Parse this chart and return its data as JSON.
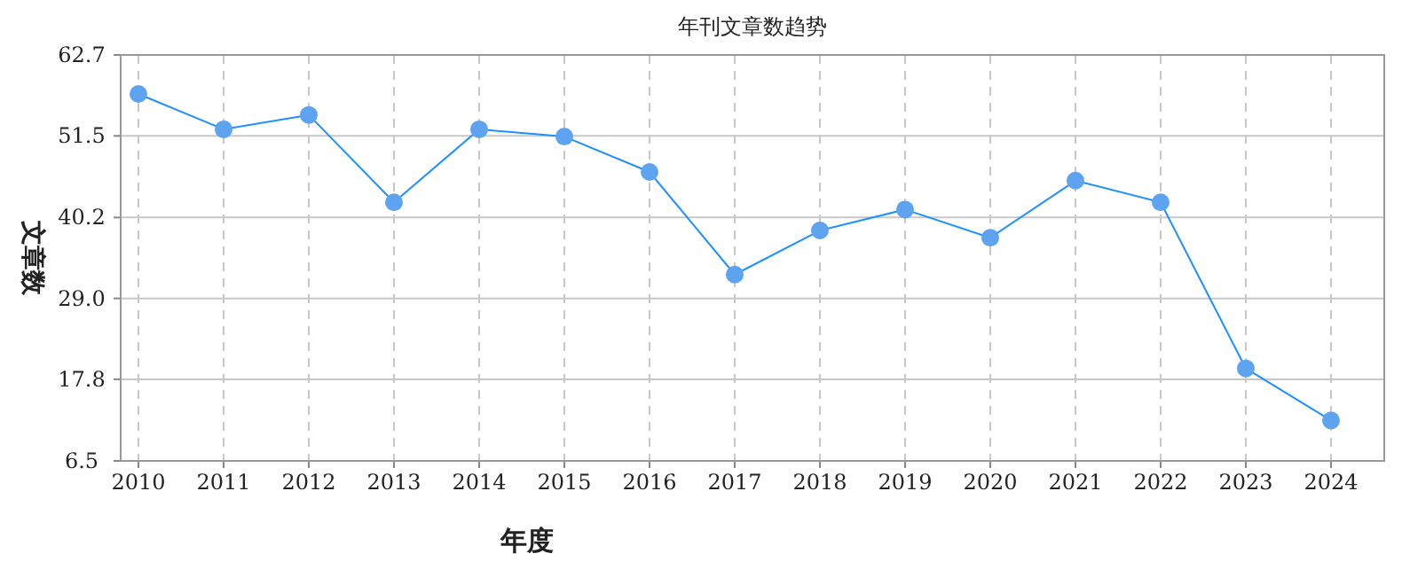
{
  "chart_data": {
    "type": "line",
    "title": "年刊文章数趋势",
    "xlabel": "年度",
    "ylabel": "文章数",
    "categories": [
      "2010",
      "2011",
      "2012",
      "2013",
      "2014",
      "2015",
      "2016",
      "2017",
      "2018",
      "2019",
      "2020",
      "2021",
      "2022",
      "2023",
      "2024"
    ],
    "series": [
      {
        "color": "#1e90ff",
        "values": [
          57.3,
          52.4,
          54.4,
          42.3,
          52.4,
          51.4,
          46.5,
          32.3,
          38.4,
          41.3,
          37.4,
          45.3,
          42.3,
          19.3,
          12.1
        ]
      }
    ],
    "ylim": [
      6.5,
      62.7
    ],
    "yticks": [
      6.5,
      17.8,
      {
        "value": 29.0,
        "label": "29.0"
      },
      {
        "value": 40.2,
        "label": "40.2"
      },
      51.5,
      62.7
    ],
    "grid": true,
    "marker": "circle",
    "line_style": "solid"
  }
}
